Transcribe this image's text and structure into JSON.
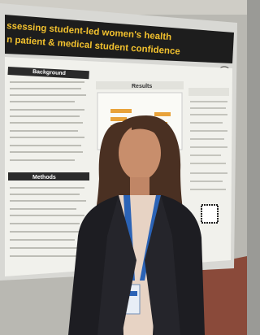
{
  "poster": {
    "title_lines": [
      "ssessing student-led women's health",
      "n patient & medical student confidence"
    ],
    "sections": {
      "background": "Background",
      "methods": "Methods",
      "results": "Results"
    }
  }
}
